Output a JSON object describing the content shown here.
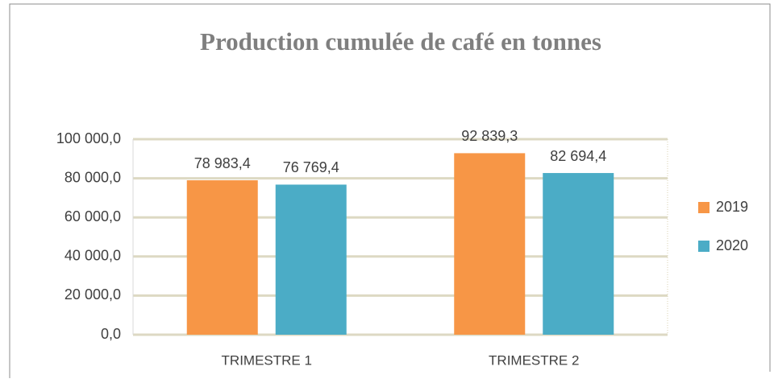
{
  "chart_data": {
    "type": "bar",
    "title": "Production cumulée de café en tonnes",
    "categories": [
      "TRIMESTRE 1",
      "TRIMESTRE 2"
    ],
    "series": [
      {
        "name": "2019",
        "color": "#f79646",
        "values": [
          78983.4,
          92839.3
        ],
        "value_labels": [
          "78 983,4",
          "92 839,3"
        ]
      },
      {
        "name": "2020",
        "color": "#4bacc6",
        "values": [
          76769.4,
          82694.4
        ],
        "value_labels": [
          "76 769,4",
          "82 694,4"
        ]
      }
    ],
    "ylim": [
      0,
      100000
    ],
    "yticks": [
      {
        "value": 0,
        "label": "0,0"
      },
      {
        "value": 20000,
        "label": "20 000,0"
      },
      {
        "value": 40000,
        "label": "40 000,0"
      },
      {
        "value": 60000,
        "label": "60 000,0"
      },
      {
        "value": 80000,
        "label": "80 000,0"
      },
      {
        "value": 100000,
        "label": "100 000,0"
      }
    ],
    "grid": true,
    "legend": "right"
  }
}
